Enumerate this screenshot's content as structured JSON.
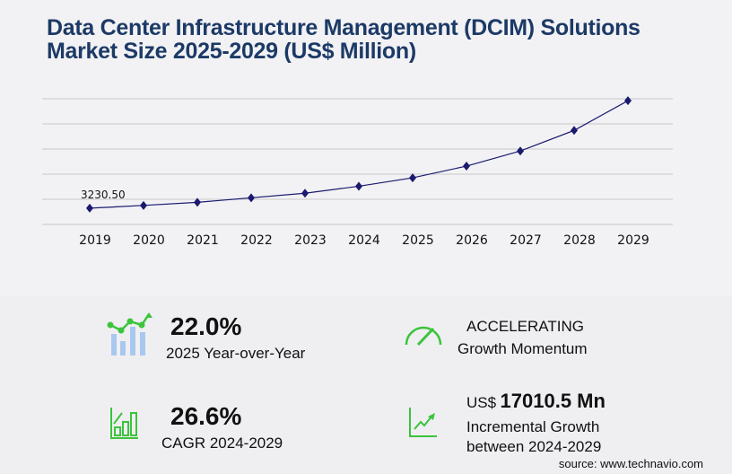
{
  "title_line1": "Data Center Infrastructure Management (DCIM) Solutions",
  "title_line2": "Market Size 2025-2029 (US$ Million)",
  "chart_data": {
    "type": "line",
    "categories": [
      "2019",
      "2020",
      "2021",
      "2022",
      "2023",
      "2024",
      "2025",
      "2026",
      "2027",
      "2028",
      "2029"
    ],
    "values": [
      3230.5,
      3780,
      4400,
      5300,
      6200,
      7600,
      9270,
      11600,
      14600,
      18700,
      24610
    ],
    "data_labels": {
      "2019": "3230.50"
    },
    "ylim": [
      0,
      25000
    ],
    "grid": true,
    "line_color": "#1a1a6e",
    "marker": "diamond"
  },
  "kpis": {
    "yoy_value": "22.0%",
    "yoy_label": "2025 Year-over-Year",
    "momentum_value": "ACCELERATING",
    "momentum_label": "Growth Momentum",
    "cagr_value": "26.6%",
    "cagr_label": "CAGR 2024-2029",
    "incr_prefix": "US$",
    "incr_value": "17010.5 Mn",
    "incr_label1": "Incremental Growth",
    "incr_label2": "between 2024-2029"
  },
  "source": "source: www.technavio.com",
  "colors": {
    "title": "#1c3a66",
    "accent_green": "#3cc43c",
    "bar_blue": "#a8c8f0"
  }
}
